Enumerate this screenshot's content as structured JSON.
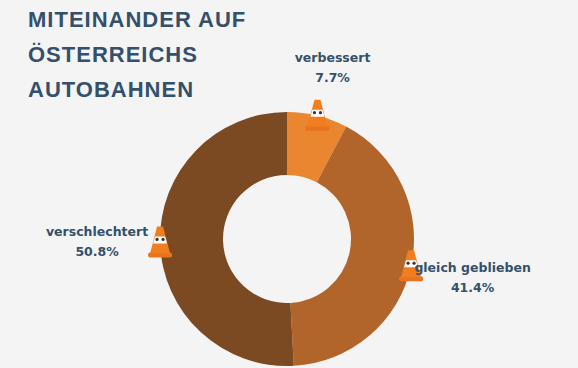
{
  "chart_data": {
    "type": "donut",
    "title": "MITEINANDER AUF ÖSTERREICHS AUTOBAHNEN",
    "categories": [
      "verbessert",
      "gleich geblieben",
      "verschlechtert"
    ],
    "values": [
      7.7,
      41.4,
      50.8
    ],
    "value_labels": [
      "7.7%",
      "41.4%",
      "50.8%"
    ],
    "colors": [
      "#e9862f",
      "#b2652a",
      "#7b4a22"
    ],
    "data_labels": true
  }
}
